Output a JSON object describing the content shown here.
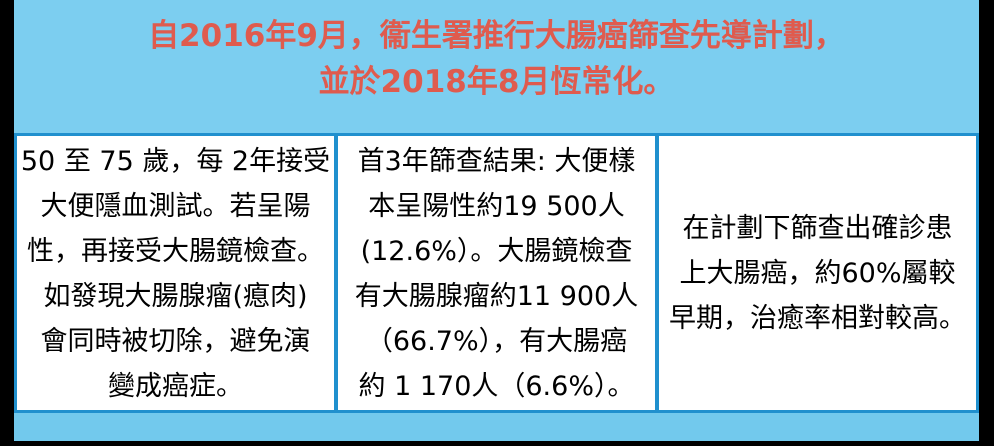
{
  "header": {
    "lines": [
      "自2016年9月，衞生署推行大腸癌篩查先導計劃，",
      "並於2018年8月恆常化。"
    ]
  },
  "columns": [
    {
      "topic": "screening-method",
      "lines": [
        "50 至 75 歲，每 2年接受",
        "大便隱血測試。若呈陽",
        "性，再接受大腸鏡檢查。",
        "如發現大腸腺瘤(瘜肉)",
        "會同時被切除，避免演",
        "變成癌症。"
      ]
    },
    {
      "topic": "screening-results",
      "lines": [
        "首3年篩查結果: 大便樣",
        "本呈陽性約19 500人",
        "(12.6%）。大腸鏡檢查",
        "有大腸腺瘤約11 900人",
        "（66.7%），有大腸癌",
        "約 1 170人（6.6%）。"
      ]
    },
    {
      "topic": "early-detection-outcome",
      "lines": [
        "在計劃下篩查出確診患",
        "上大腸癌，約60%屬較",
        "早期，治癒率相對較高。"
      ]
    }
  ],
  "colors": {
    "header_bg": "#7CCEF0",
    "header_text": "#DF5B4E",
    "table_border_blue": "#2090CE",
    "footer_bg": "#72C9ED",
    "frame_black": "#000000",
    "body_text": "#000000"
  }
}
